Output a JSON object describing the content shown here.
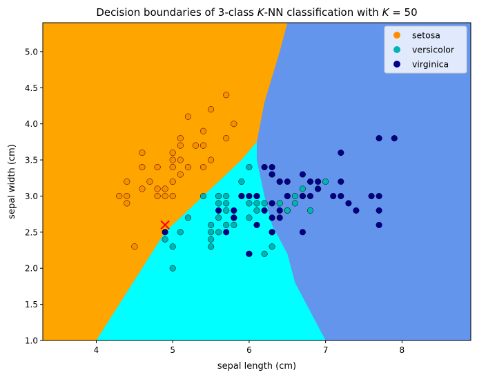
{
  "chart_data": {
    "type": "scatter",
    "title": "Decision boundaries of 3-class K-NN classification with K = 50",
    "title_parts": {
      "prefix": "Decision boundaries of 3-class ",
      "k1": "K",
      "mid": "-NN classification with ",
      "k2": "K",
      "suffix": " = 50"
    },
    "xlabel": "sepal length (cm)",
    "ylabel": "sepal width (cm)",
    "xlim": [
      3.3,
      8.9
    ],
    "ylim": [
      1.0,
      5.4
    ],
    "xticks": [
      4,
      5,
      6,
      7,
      8
    ],
    "yticks": [
      1.0,
      1.5,
      2.0,
      2.5,
      3.0,
      3.5,
      4.0,
      4.5,
      5.0
    ],
    "grid": false,
    "legend_position": "top-right",
    "region_colors": {
      "setosa": "#ffa500",
      "versicolor": "#00ffff",
      "virginica": "#6495ed"
    },
    "marker_colors": {
      "setosa": "#ff8c00",
      "versicolor": "#00b4b4",
      "virginica": "#00008b"
    },
    "boundary_setosa_versicolor": [
      [
        4.0,
        1.0
      ],
      [
        4.3,
        1.5
      ],
      [
        4.6,
        2.0
      ],
      [
        4.9,
        2.5
      ],
      [
        5.3,
        2.9
      ],
      [
        5.9,
        3.5
      ],
      [
        6.1,
        3.75
      ]
    ],
    "boundary_versicolor_virginica": [
      [
        7.0,
        1.0
      ],
      [
        6.6,
        1.8
      ],
      [
        6.5,
        2.2
      ],
      [
        6.3,
        2.6
      ],
      [
        6.2,
        3.0
      ],
      [
        6.1,
        3.5
      ],
      [
        6.1,
        3.75
      ]
    ],
    "boundary_setosa_virginica": [
      [
        6.1,
        3.75
      ],
      [
        6.2,
        4.3
      ],
      [
        6.4,
        5.0
      ],
      [
        6.5,
        5.4
      ]
    ],
    "new_point": {
      "x": 4.9,
      "y": 2.6,
      "marker": "x",
      "color": "#ff0000"
    },
    "series": [
      {
        "name": "setosa",
        "points": [
          [
            5.1,
            3.5
          ],
          [
            4.9,
            3.0
          ],
          [
            4.7,
            3.2
          ],
          [
            4.6,
            3.1
          ],
          [
            5.0,
            3.6
          ],
          [
            5.4,
            3.9
          ],
          [
            4.6,
            3.4
          ],
          [
            5.0,
            3.4
          ],
          [
            4.4,
            2.9
          ],
          [
            4.9,
            3.1
          ],
          [
            5.4,
            3.7
          ],
          [
            4.8,
            3.4
          ],
          [
            4.8,
            3.0
          ],
          [
            4.3,
            3.0
          ],
          [
            5.8,
            4.0
          ],
          [
            5.7,
            4.4
          ],
          [
            5.1,
            3.8
          ],
          [
            5.7,
            3.8
          ],
          [
            5.1,
            3.3
          ],
          [
            4.8,
            3.1
          ],
          [
            5.5,
            4.2
          ],
          [
            5.0,
            3.2
          ],
          [
            5.5,
            3.5
          ],
          [
            4.4,
            3.2
          ],
          [
            5.0,
            3.5
          ],
          [
            4.5,
            2.3
          ],
          [
            5.3,
            3.7
          ],
          [
            5.2,
            4.1
          ],
          [
            5.4,
            3.4
          ],
          [
            5.2,
            3.4
          ],
          [
            4.6,
            3.6
          ],
          [
            4.4,
            3.0
          ],
          [
            5.1,
            3.7
          ],
          [
            5.0,
            3.0
          ]
        ]
      },
      {
        "name": "versicolor",
        "points": [
          [
            7.0,
            3.2
          ],
          [
            6.4,
            3.2
          ],
          [
            6.9,
            3.1
          ],
          [
            5.5,
            2.3
          ],
          [
            6.5,
            2.8
          ],
          [
            5.7,
            2.8
          ],
          [
            6.3,
            3.3
          ],
          [
            4.9,
            2.4
          ],
          [
            6.6,
            2.9
          ],
          [
            5.2,
            2.7
          ],
          [
            5.0,
            2.0
          ],
          [
            5.9,
            3.0
          ],
          [
            6.0,
            2.2
          ],
          [
            6.1,
            2.9
          ],
          [
            5.6,
            2.9
          ],
          [
            6.7,
            3.1
          ],
          [
            5.6,
            3.0
          ],
          [
            5.8,
            2.7
          ],
          [
            6.2,
            2.2
          ],
          [
            5.6,
            2.5
          ],
          [
            5.9,
            3.2
          ],
          [
            6.1,
            2.8
          ],
          [
            6.3,
            2.5
          ],
          [
            6.4,
            2.9
          ],
          [
            6.6,
            3.0
          ],
          [
            6.8,
            2.8
          ],
          [
            6.0,
            2.9
          ],
          [
            5.7,
            2.6
          ],
          [
            5.5,
            2.4
          ],
          [
            5.8,
            2.7
          ],
          [
            6.0,
            2.7
          ],
          [
            5.4,
            3.0
          ],
          [
            6.0,
            3.4
          ],
          [
            6.3,
            2.3
          ],
          [
            5.6,
            3.0
          ],
          [
            5.5,
            2.5
          ],
          [
            5.5,
            2.6
          ],
          [
            5.8,
            2.6
          ],
          [
            5.0,
            2.3
          ],
          [
            5.6,
            2.7
          ],
          [
            5.7,
            3.0
          ],
          [
            5.7,
            2.9
          ],
          [
            6.2,
            2.9
          ],
          [
            5.1,
            2.5
          ],
          [
            6.7,
            3.0
          ],
          [
            6.1,
            3.0
          ],
          [
            6.5,
            2.8
          ]
        ]
      },
      {
        "name": "virginica",
        "points": [
          [
            6.3,
            3.3
          ],
          [
            5.8,
            2.7
          ],
          [
            7.1,
            3.0
          ],
          [
            6.3,
            2.9
          ],
          [
            6.5,
            3.0
          ],
          [
            7.6,
            3.0
          ],
          [
            4.9,
            2.5
          ],
          [
            7.3,
            2.9
          ],
          [
            6.7,
            2.5
          ],
          [
            7.2,
            3.6
          ],
          [
            6.4,
            3.2
          ],
          [
            6.8,
            3.0
          ],
          [
            5.7,
            2.5
          ],
          [
            6.4,
            2.7
          ],
          [
            7.7,
            3.8
          ],
          [
            7.7,
            2.6
          ],
          [
            6.0,
            2.2
          ],
          [
            6.9,
            3.2
          ],
          [
            5.6,
            2.8
          ],
          [
            7.7,
            2.8
          ],
          [
            6.3,
            2.7
          ],
          [
            6.7,
            3.3
          ],
          [
            7.2,
            3.2
          ],
          [
            6.2,
            2.8
          ],
          [
            6.1,
            3.0
          ],
          [
            6.4,
            2.8
          ],
          [
            7.2,
            3.0
          ],
          [
            7.4,
            2.8
          ],
          [
            7.9,
            3.8
          ],
          [
            6.1,
            2.6
          ],
          [
            7.7,
            3.0
          ],
          [
            6.3,
            3.4
          ],
          [
            6.0,
            3.0
          ],
          [
            6.9,
            3.1
          ],
          [
            5.8,
            2.8
          ],
          [
            6.8,
            3.2
          ],
          [
            6.7,
            3.0
          ],
          [
            6.5,
            3.0
          ],
          [
            6.2,
            3.4
          ],
          [
            5.9,
            3.0
          ],
          [
            6.5,
            3.2
          ],
          [
            6.3,
            2.5
          ]
        ]
      }
    ]
  }
}
